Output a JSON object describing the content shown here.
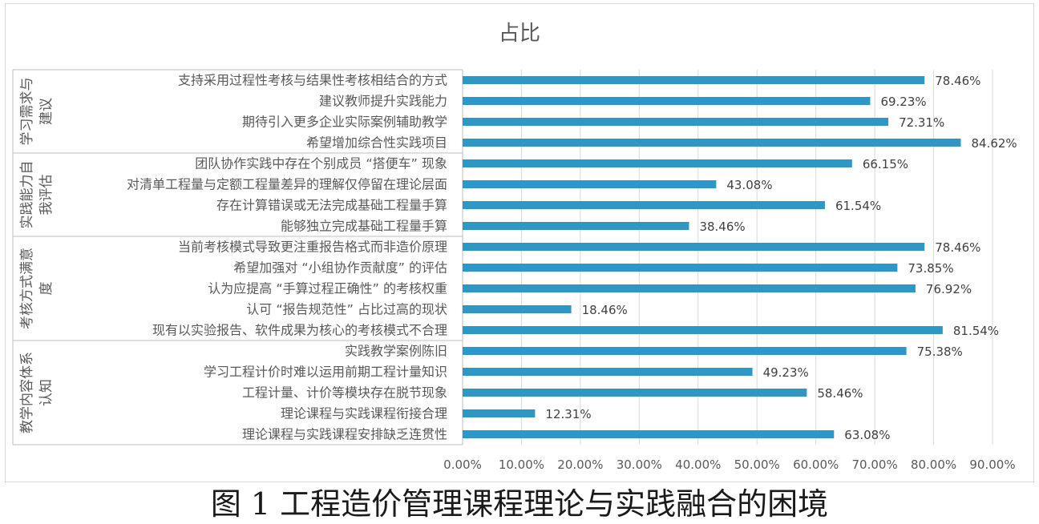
{
  "caption": "图 1 工程造价管理课程理论与实践融合的困境",
  "chart_data": {
    "type": "bar",
    "orientation": "horizontal",
    "title": "占比",
    "xlabel": "",
    "ylabel": "",
    "xlim": [
      0,
      90
    ],
    "x_ticks": [
      "0.00%",
      "10.00%",
      "20.00%",
      "30.00%",
      "40.00%",
      "50.00%",
      "60.00%",
      "70.00%",
      "80.00%",
      "90.00%"
    ],
    "grid": true,
    "legend": "none",
    "bar_color": "#2e97c6",
    "groups": [
      {
        "name_lines": [
          "学习需求与",
          "建议"
        ],
        "categories": [
          "支持采用过程性考核与结果性考核相结合的方式",
          "建议教师提升实践能力",
          "期待引入更多企业实际案例辅助教学",
          "希望增加综合性实践项目"
        ],
        "values": [
          78.46,
          69.23,
          72.31,
          84.62
        ],
        "labels": [
          "78.46%",
          "69.23%",
          "72.31%",
          "84.62%"
        ]
      },
      {
        "name_lines": [
          "实践能力自",
          "我评估"
        ],
        "categories": [
          "团队协作实践中存在个别成员 “搭便车” 现象",
          "对清单工程量与定额工程量差异的理解仅停留在理论层面",
          "存在计算错误或无法完成基础工程量手算",
          "能够独立完成基础工程量手算"
        ],
        "values": [
          66.15,
          43.08,
          61.54,
          38.46
        ],
        "labels": [
          "66.15%",
          "43.08%",
          "61.54%",
          "38.46%"
        ]
      },
      {
        "name_lines": [
          "考核方式满意",
          "度"
        ],
        "categories": [
          "当前考核模式导致更注重报告格式而非造价原理",
          "希望加强对 “小组协作贡献度” 的评估",
          "认为应提高 “手算过程正确性” 的考核权重",
          "认可 “报告规范性” 占比过高的现状",
          "现有以实验报告、软件成果为核心的考核模式不合理"
        ],
        "values": [
          78.46,
          73.85,
          76.92,
          18.46,
          81.54
        ],
        "labels": [
          "78.46%",
          "73.85%",
          "76.92%",
          "18.46%",
          "81.54%"
        ]
      },
      {
        "name_lines": [
          "教学内容体系",
          "认知"
        ],
        "categories": [
          "实践教学案例陈旧",
          "学习工程计价时难以运用前期工程计量知识",
          "工程计量、计价等模块存在脱节现象",
          "理论课程与实践课程衔接合理",
          "理论课程与实践课程安排缺乏连贯性"
        ],
        "values": [
          75.38,
          49.23,
          58.46,
          12.31,
          63.08
        ],
        "labels": [
          "75.38%",
          "49.23%",
          "58.46%",
          "12.31%",
          "63.08%"
        ]
      }
    ]
  }
}
